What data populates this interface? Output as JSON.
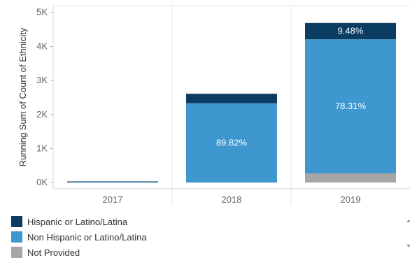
{
  "chart_data": {
    "type": "bar",
    "stacked": true,
    "title": "",
    "xlabel": "",
    "ylabel": "Running Sum of Count of Ethnicity",
    "categories": [
      "2017",
      "2018",
      "2019"
    ],
    "ylim": [
      -180,
      5200
    ],
    "yticks": [
      0,
      1000,
      2000,
      3000,
      4000,
      5000
    ],
    "ytick_labels": [
      "0K",
      "1K",
      "2K",
      "3K",
      "4K",
      "5K"
    ],
    "series": [
      {
        "name": "Not Provided",
        "color": "#a6a6a6",
        "values": [
          0,
          0,
          270
        ]
      },
      {
        "name": "Non Hispanic or Latino/Latina",
        "color": "#3f97d0",
        "values": [
          20,
          2330,
          3940
        ]
      },
      {
        "name": "Hispanic or Latino/Latina",
        "color": "#0b3d63",
        "values": [
          15,
          280,
          480
        ]
      }
    ],
    "data_labels": [
      {
        "category": "2018",
        "series": "Non Hispanic or Latino/Latina",
        "text": "89.82%"
      },
      {
        "category": "2019",
        "series": "Non Hispanic or Latino/Latina",
        "text": "78.31%"
      },
      {
        "category": "2019",
        "series": "Hispanic or Latino/Latina",
        "text": "9.48%"
      }
    ],
    "grid": true,
    "legend_position": "bottom-left"
  },
  "legend": {
    "items": [
      {
        "label": "Hispanic or Latino/Latina",
        "color": "#0b3d63"
      },
      {
        "label": "Non Hispanic or Latino/Latina",
        "color": "#3f97d0"
      },
      {
        "label": "Not Provided",
        "color": "#a6a6a6"
      }
    ]
  }
}
